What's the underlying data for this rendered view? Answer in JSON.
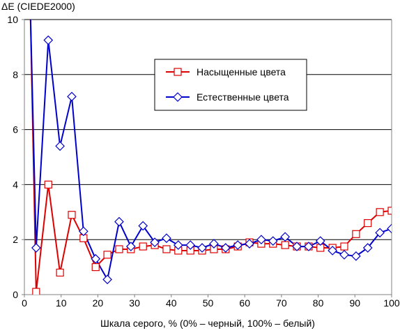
{
  "chart_data": {
    "type": "line",
    "title": "",
    "ylabel": "ΔE (CIEDE2000)",
    "xlabel": "Шкала серого, % (0% – черный, 100% – белый)",
    "xlim": [
      0,
      100
    ],
    "ylim": [
      0,
      10
    ],
    "x_ticks": [
      0,
      10,
      20,
      30,
      40,
      50,
      60,
      70,
      80,
      90,
      100
    ],
    "y_ticks": [
      0,
      2,
      4,
      6,
      8,
      10
    ],
    "grid": "horizontal",
    "legend_position": "upper-center-right",
    "colors": {
      "saturated": "#dd0000",
      "natural": "#0000cc"
    },
    "series": [
      {
        "name": "Насыщенные цвета",
        "color": "#dd0000",
        "marker": "square",
        "x": [
          1.6,
          3.2,
          6.5,
          9.7,
          12.9,
          16.1,
          19.4,
          22.6,
          25.8,
          29.0,
          32.3,
          35.5,
          38.7,
          41.9,
          45.2,
          48.4,
          51.6,
          54.8,
          58.1,
          61.3,
          64.5,
          67.7,
          71.0,
          74.2,
          77.4,
          80.6,
          83.9,
          87.1,
          90.3,
          93.5,
          96.8,
          100
        ],
        "values": [
          10.5,
          0.1,
          4.0,
          0.8,
          2.9,
          2.05,
          1.0,
          1.45,
          1.65,
          1.65,
          1.75,
          1.8,
          1.65,
          1.6,
          1.6,
          1.6,
          1.65,
          1.65,
          1.75,
          1.9,
          1.85,
          1.85,
          1.8,
          1.75,
          1.75,
          1.7,
          1.7,
          1.75,
          2.2,
          2.6,
          3.0,
          3.05
        ]
      },
      {
        "name": "Естественные цвета",
        "color": "#0000cc",
        "marker": "diamond",
        "x": [
          1.6,
          3.2,
          6.5,
          9.7,
          12.9,
          16.1,
          19.4,
          22.6,
          25.8,
          29.0,
          32.3,
          35.5,
          38.7,
          41.9,
          45.2,
          48.4,
          51.6,
          54.8,
          58.1,
          61.3,
          64.5,
          67.7,
          71.0,
          74.2,
          77.4,
          80.6,
          83.9,
          87.1,
          90.3,
          93.5,
          96.8,
          100
        ],
        "values": [
          10.5,
          1.7,
          9.25,
          5.4,
          7.2,
          2.3,
          1.3,
          0.55,
          2.65,
          1.75,
          2.5,
          1.9,
          2.05,
          1.8,
          1.8,
          1.7,
          1.85,
          1.7,
          1.8,
          1.85,
          2.0,
          1.95,
          2.1,
          1.75,
          1.75,
          1.95,
          1.6,
          1.45,
          1.4,
          1.7,
          2.25,
          2.4
        ]
      }
    ]
  }
}
